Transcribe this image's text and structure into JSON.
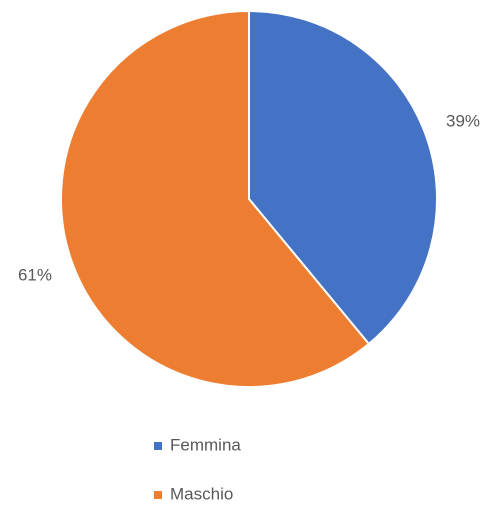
{
  "chart_data": {
    "type": "pie",
    "categories": [
      "Femmina",
      "Maschio"
    ],
    "values": [
      39,
      61
    ],
    "value_labels": [
      "39%",
      "61%"
    ],
    "colors": [
      "#4472c4",
      "#ed7d31"
    ],
    "legend": "bottom"
  }
}
